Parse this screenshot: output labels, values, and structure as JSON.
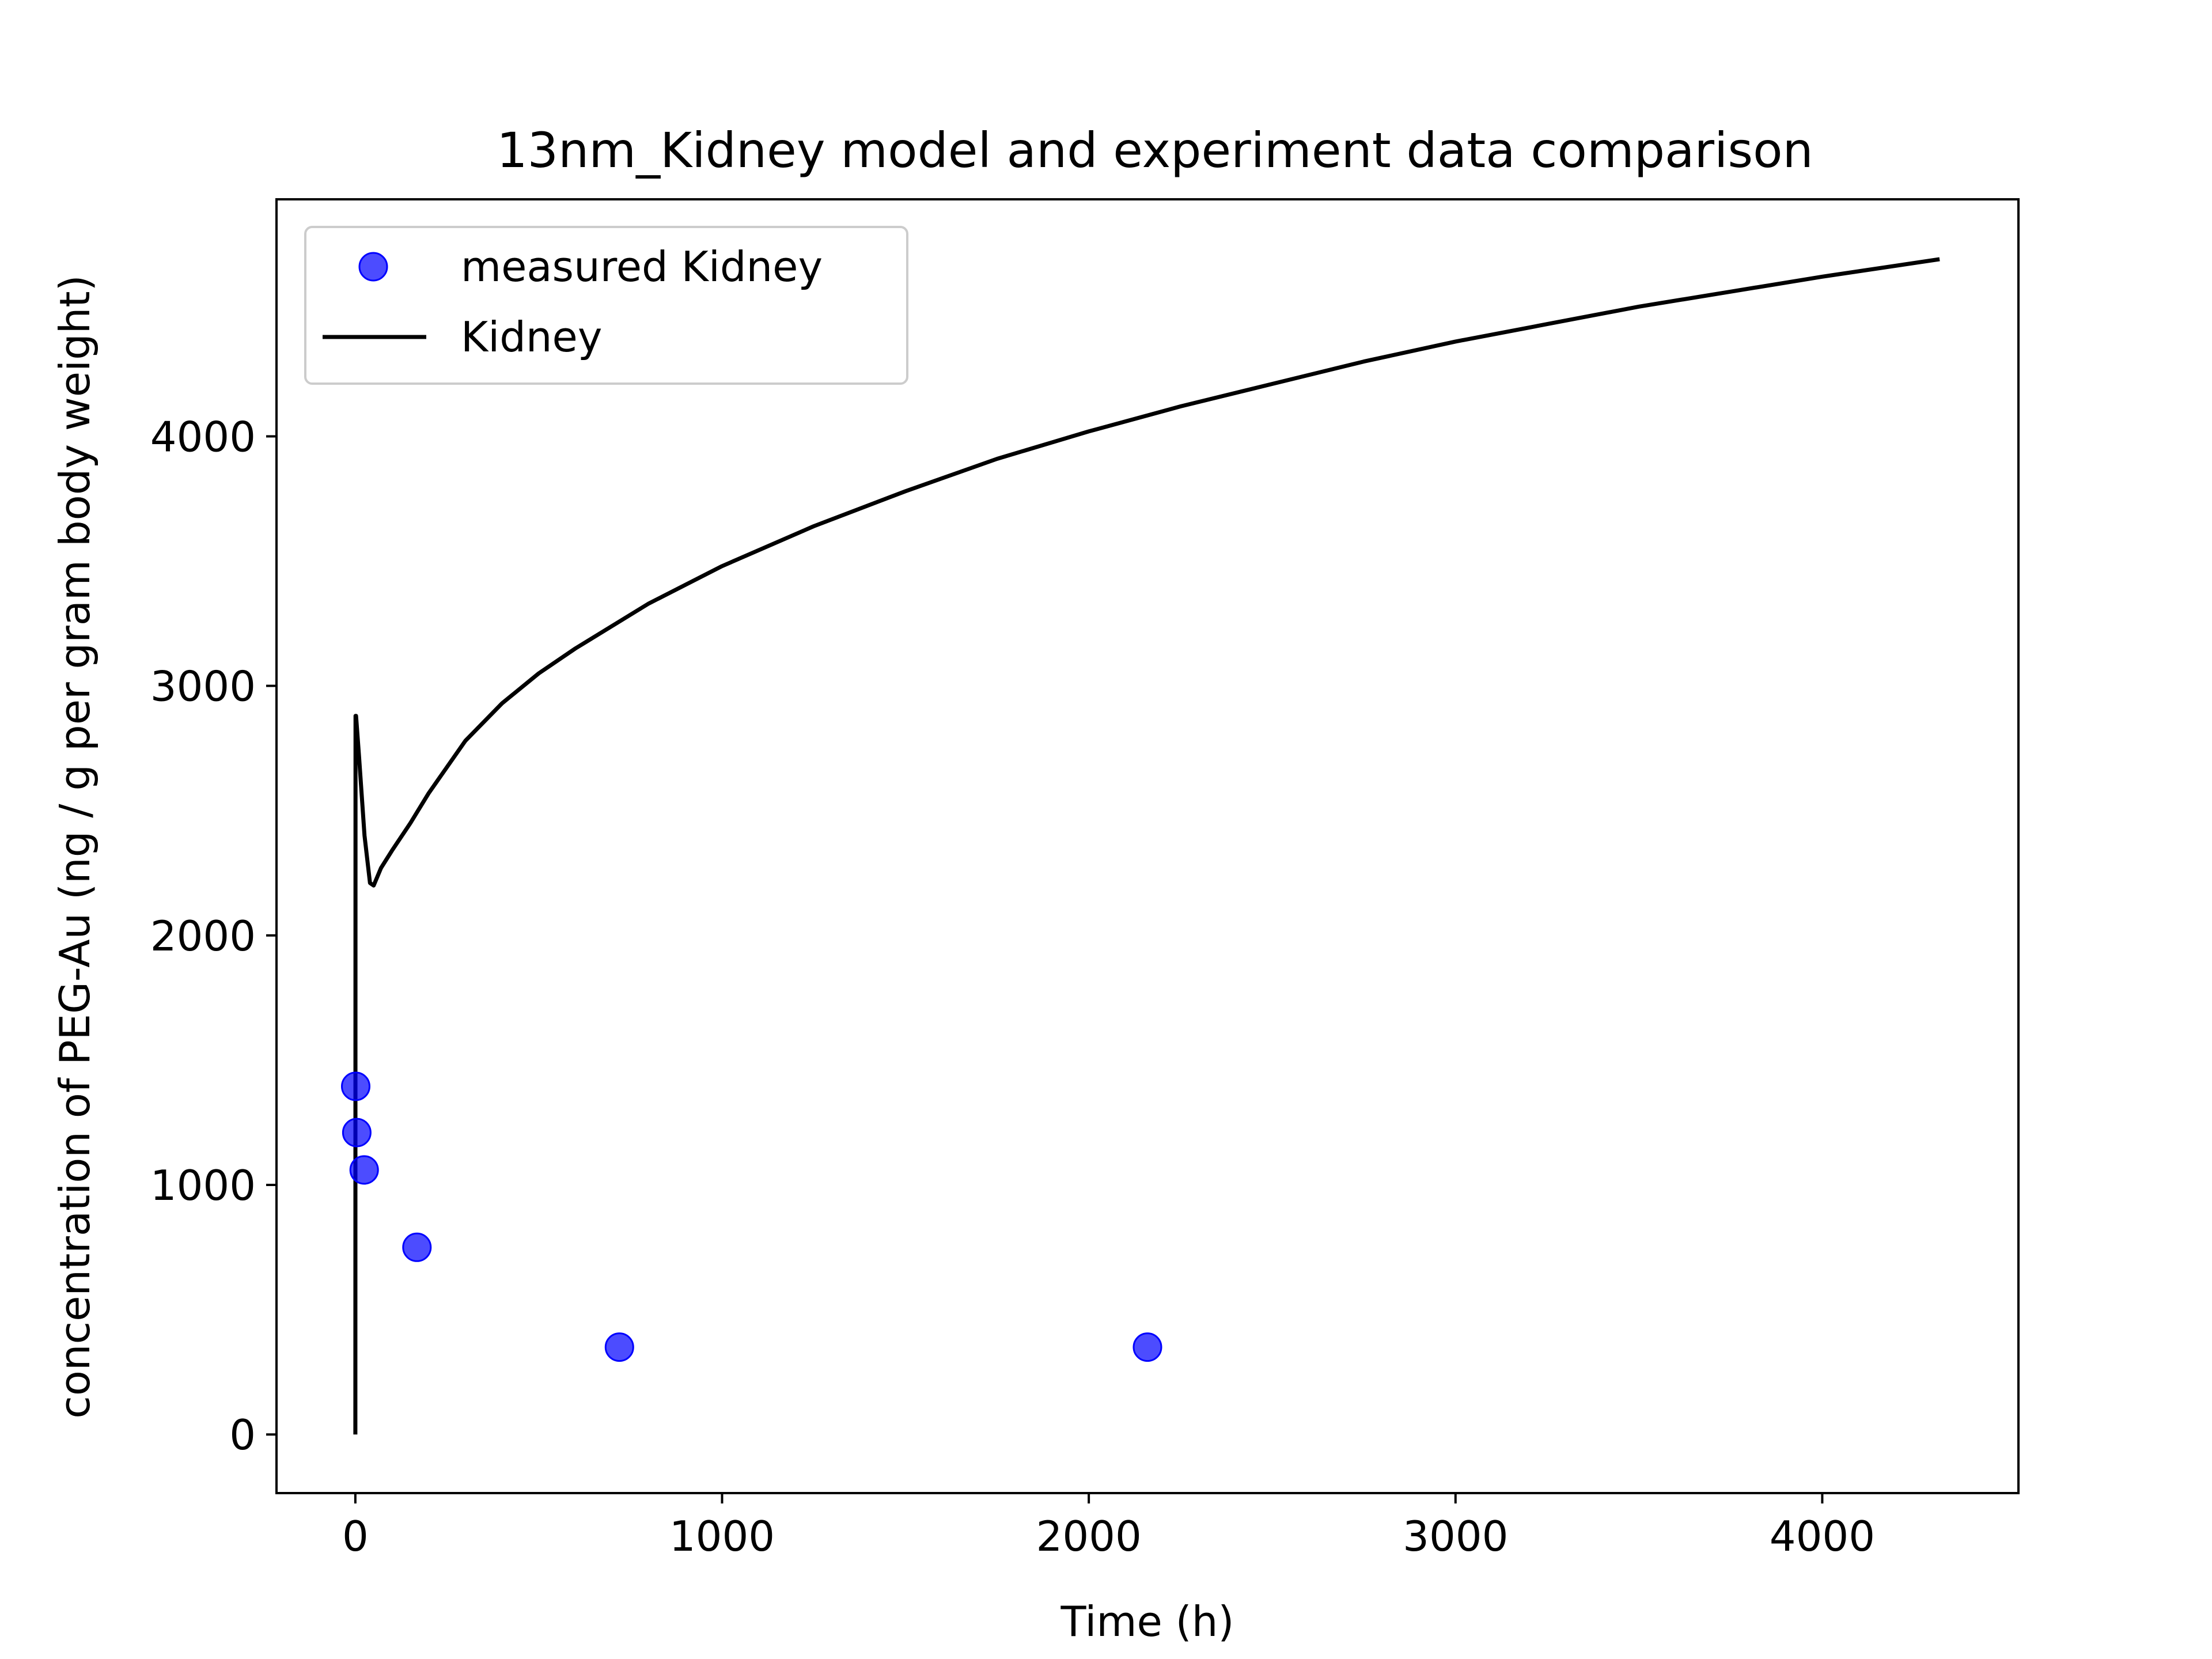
{
  "chart_data": {
    "type": "scatter+line",
    "title": "13nm_Kidney model and experiment data comparison",
    "xlabel": "Time (h)",
    "ylabel": "concentration of PEG-Au (ng / g per gram body weight)",
    "xlim": [
      -215,
      4535
    ],
    "ylim": [
      -235,
      4950
    ],
    "xticks": [
      0,
      1000,
      2000,
      3000,
      4000
    ],
    "xtick_labels": [
      "0",
      "1000",
      "2000",
      "3000",
      "4000"
    ],
    "yticks": [
      0,
      1000,
      2000,
      3000,
      4000
    ],
    "ytick_labels": [
      "0",
      "1000",
      "2000",
      "3000",
      "4000"
    ],
    "grid": false,
    "legend_position": "top-left",
    "series": [
      {
        "name": "measured Kidney",
        "kind": "scatter",
        "color": "#0000ff",
        "x": [
          1,
          4,
          24,
          168,
          720,
          2160
        ],
        "y": [
          1395,
          1210,
          1060,
          750,
          350,
          350
        ]
      },
      {
        "name": "Kidney",
        "kind": "line",
        "color": "#000000",
        "x": [
          0,
          0.5,
          2,
          10,
          25,
          40,
          50,
          70,
          100,
          150,
          200,
          300,
          400,
          500,
          600,
          800,
          1000,
          1250,
          1500,
          1750,
          2000,
          2250,
          2500,
          2750,
          3000,
          3250,
          3500,
          3750,
          4000,
          4320
        ],
        "y": [
          0,
          2880,
          2880,
          2720,
          2400,
          2210,
          2200,
          2270,
          2340,
          2450,
          2570,
          2780,
          2930,
          3050,
          3150,
          3330,
          3480,
          3640,
          3780,
          3910,
          4020,
          4120,
          4210,
          4300,
          4380,
          4450,
          4520,
          4580,
          4640,
          4710
        ]
      }
    ]
  }
}
